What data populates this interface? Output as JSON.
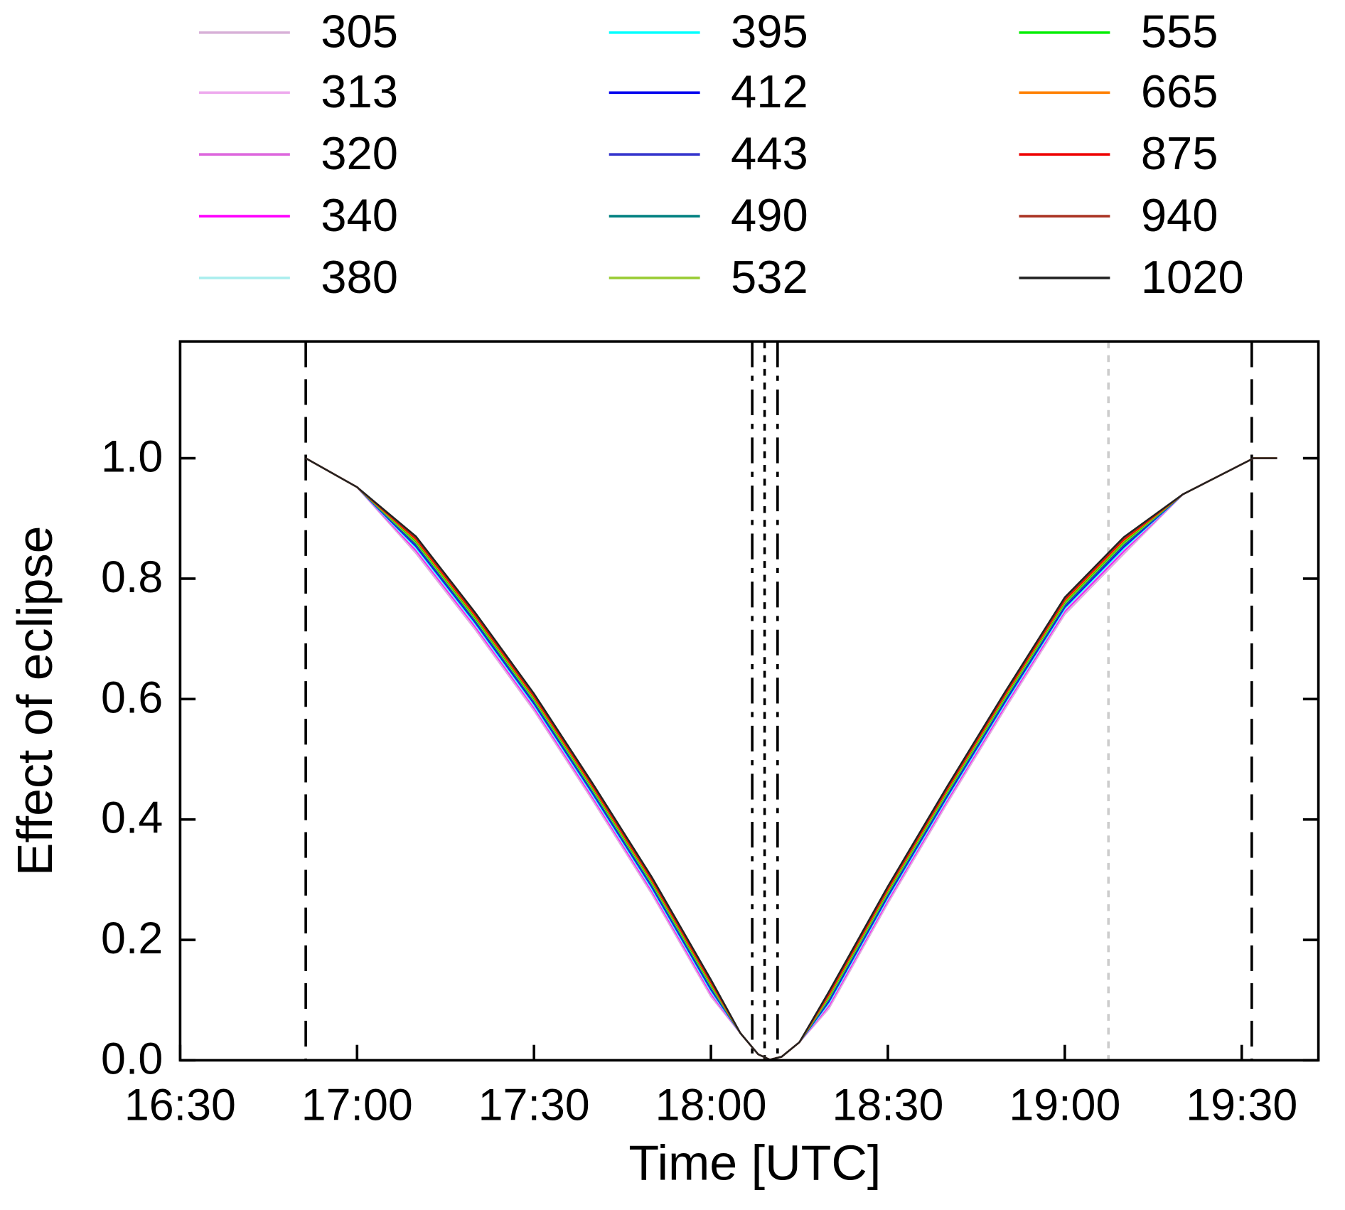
{
  "chart_data": {
    "type": "line",
    "xlabel": "Time [UTC]",
    "ylabel": "Effect of eclipse",
    "x": [
      1011.3,
      1020,
      1030,
      1040,
      1050,
      1060,
      1070,
      1080,
      1085,
      1088,
      1090,
      1092,
      1095,
      1100,
      1110,
      1120,
      1130,
      1140,
      1150,
      1160,
      1172,
      1176
    ],
    "series": [
      {
        "name": "305",
        "color": "#d8b0d8",
        "values": [
          1.0,
          0.952,
          0.842,
          0.716,
          0.581,
          0.431,
          0.276,
          0.106,
          0.045,
          0.01,
          0.001,
          0.006,
          0.03,
          0.086,
          0.261,
          0.426,
          0.586,
          0.741,
          0.841,
          0.94,
          1.0,
          1.0
        ]
      },
      {
        "name": "313",
        "color": "#eeaaee",
        "values": [
          1.0,
          0.952,
          0.844,
          0.718,
          0.583,
          0.433,
          0.278,
          0.108,
          0.045,
          0.01,
          0.001,
          0.006,
          0.03,
          0.088,
          0.263,
          0.428,
          0.588,
          0.743,
          0.843,
          0.94,
          1.0,
          1.0
        ]
      },
      {
        "name": "320",
        "color": "#dd66dd",
        "values": [
          1.0,
          0.952,
          0.846,
          0.72,
          0.585,
          0.435,
          0.28,
          0.11,
          0.045,
          0.01,
          0.001,
          0.006,
          0.03,
          0.09,
          0.265,
          0.43,
          0.59,
          0.745,
          0.845,
          0.94,
          1.0,
          1.0
        ]
      },
      {
        "name": "340",
        "color": "#ff00ff",
        "values": [
          1.0,
          0.952,
          0.848,
          0.722,
          0.587,
          0.437,
          0.282,
          0.112,
          0.045,
          0.01,
          0.001,
          0.006,
          0.03,
          0.092,
          0.267,
          0.432,
          0.592,
          0.747,
          0.847,
          0.94,
          1.0,
          1.0
        ]
      },
      {
        "name": "380",
        "color": "#aaeeee",
        "values": [
          1.0,
          0.952,
          0.85,
          0.724,
          0.589,
          0.439,
          0.284,
          0.114,
          0.045,
          0.01,
          0.001,
          0.006,
          0.03,
          0.094,
          0.269,
          0.434,
          0.594,
          0.749,
          0.849,
          0.94,
          1.0,
          1.0
        ]
      },
      {
        "name": "395",
        "color": "#00ffff",
        "values": [
          1.0,
          0.952,
          0.852,
          0.726,
          0.591,
          0.441,
          0.286,
          0.116,
          0.045,
          0.01,
          0.001,
          0.006,
          0.03,
          0.096,
          0.271,
          0.436,
          0.596,
          0.751,
          0.851,
          0.94,
          1.0,
          1.0
        ]
      },
      {
        "name": "412",
        "color": "#0000ee",
        "values": [
          1.0,
          0.952,
          0.854,
          0.728,
          0.593,
          0.443,
          0.288,
          0.118,
          0.045,
          0.01,
          0.001,
          0.006,
          0.03,
          0.098,
          0.273,
          0.438,
          0.598,
          0.753,
          0.853,
          0.94,
          1.0,
          1.0
        ]
      },
      {
        "name": "443",
        "color": "#3333cc",
        "values": [
          1.0,
          0.952,
          0.856,
          0.73,
          0.595,
          0.445,
          0.29,
          0.12,
          0.045,
          0.01,
          0.001,
          0.006,
          0.03,
          0.1,
          0.275,
          0.44,
          0.6,
          0.755,
          0.855,
          0.94,
          1.0,
          1.0
        ]
      },
      {
        "name": "490",
        "color": "#008080",
        "values": [
          1.0,
          0.952,
          0.858,
          0.732,
          0.597,
          0.447,
          0.292,
          0.122,
          0.045,
          0.01,
          0.001,
          0.006,
          0.03,
          0.102,
          0.277,
          0.442,
          0.602,
          0.757,
          0.857,
          0.94,
          1.0,
          1.0
        ]
      },
      {
        "name": "532",
        "color": "#99cc33",
        "values": [
          1.0,
          0.952,
          0.86,
          0.734,
          0.599,
          0.449,
          0.294,
          0.124,
          0.045,
          0.01,
          0.001,
          0.006,
          0.03,
          0.104,
          0.279,
          0.444,
          0.604,
          0.759,
          0.859,
          0.94,
          1.0,
          1.0
        ]
      },
      {
        "name": "555",
        "color": "#00ee00",
        "values": [
          1.0,
          0.952,
          0.862,
          0.736,
          0.601,
          0.451,
          0.296,
          0.126,
          0.045,
          0.01,
          0.001,
          0.006,
          0.03,
          0.106,
          0.281,
          0.446,
          0.606,
          0.761,
          0.861,
          0.94,
          1.0,
          1.0
        ]
      },
      {
        "name": "665",
        "color": "#ff8000",
        "values": [
          1.0,
          0.952,
          0.864,
          0.738,
          0.603,
          0.453,
          0.298,
          0.128,
          0.045,
          0.01,
          0.001,
          0.006,
          0.03,
          0.108,
          0.283,
          0.448,
          0.608,
          0.763,
          0.863,
          0.94,
          1.0,
          1.0
        ]
      },
      {
        "name": "875",
        "color": "#ee0000",
        "values": [
          1.0,
          0.952,
          0.866,
          0.74,
          0.605,
          0.455,
          0.3,
          0.13,
          0.045,
          0.01,
          0.001,
          0.006,
          0.03,
          0.11,
          0.285,
          0.45,
          0.61,
          0.765,
          0.865,
          0.94,
          1.0,
          1.0
        ]
      },
      {
        "name": "940",
        "color": "#aa3322",
        "values": [
          1.0,
          0.952,
          0.868,
          0.742,
          0.607,
          0.457,
          0.302,
          0.132,
          0.045,
          0.01,
          0.001,
          0.006,
          0.03,
          0.112,
          0.287,
          0.452,
          0.612,
          0.767,
          0.867,
          0.94,
          1.0,
          1.0
        ]
      },
      {
        "name": "1020",
        "color": "#222222",
        "values": [
          1.0,
          0.952,
          0.87,
          0.744,
          0.609,
          0.459,
          0.304,
          0.134,
          0.045,
          0.01,
          0.001,
          0.006,
          0.03,
          0.114,
          0.289,
          0.454,
          0.614,
          0.769,
          0.869,
          0.94,
          1.0,
          1.0
        ]
      }
    ],
    "vlines": [
      {
        "x": 1011.3,
        "style": "dashed",
        "color": "#000000"
      },
      {
        "x": 1087,
        "style": "dashdot",
        "color": "#000000"
      },
      {
        "x": 1089.1,
        "style": "dotted",
        "color": "#000000"
      },
      {
        "x": 1091.3,
        "style": "dashdot",
        "color": "#000000"
      },
      {
        "x": 1147.4,
        "style": "dotted",
        "color": "#cccccc"
      },
      {
        "x": 1171.7,
        "style": "dashed",
        "color": "#000000"
      }
    ],
    "xlim": [
      990,
      1183
    ],
    "xticks": [
      {
        "value": 990,
        "label": "16:30"
      },
      {
        "value": 1020,
        "label": "17:00"
      },
      {
        "value": 1050,
        "label": "17:30"
      },
      {
        "value": 1080,
        "label": "18:00"
      },
      {
        "value": 1110,
        "label": "18:30"
      },
      {
        "value": 1140,
        "label": "19:00"
      },
      {
        "value": 1170,
        "label": "19:30"
      }
    ],
    "ylim": [
      0,
      1.194
    ],
    "yticks": [
      {
        "value": 0,
        "label": "0.0"
      },
      {
        "value": 0.2,
        "label": "0.2"
      },
      {
        "value": 0.4,
        "label": "0.4"
      },
      {
        "value": 0.6,
        "label": "0.6"
      },
      {
        "value": 0.8,
        "label": "0.8"
      },
      {
        "value": 1.0,
        "label": "1.0"
      }
    ],
    "grid": false,
    "legend": "top"
  }
}
